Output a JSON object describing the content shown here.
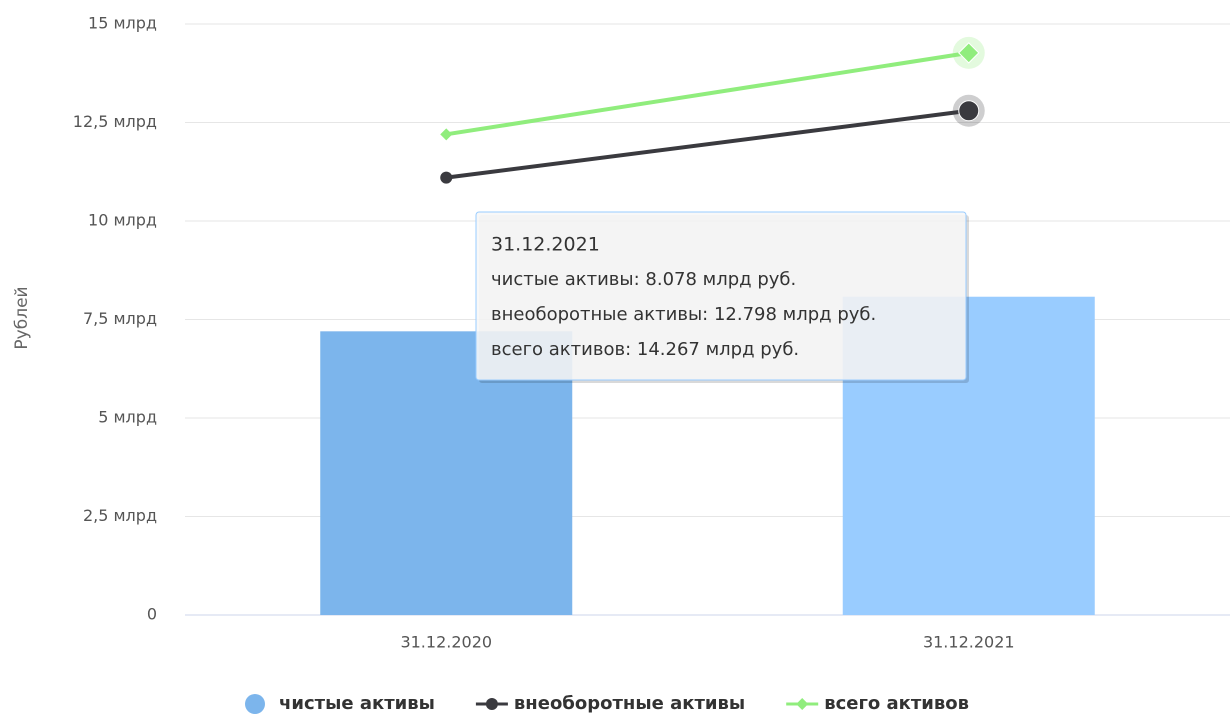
{
  "chart_data": {
    "type": "combo",
    "y_axis_title": "Рублей",
    "categories": [
      "31.12.2020",
      "31.12.2021"
    ],
    "ylim": [
      0,
      15
    ],
    "yticks": [
      0,
      {
        "value": 2.5,
        "label": "2,5 млрд"
      },
      {
        "value": 5,
        "label": "5 млрд"
      },
      {
        "value": 7.5,
        "label": "7,5 млрд"
      },
      {
        "value": 10,
        "label": "10 млрд"
      },
      {
        "value": 12.5,
        "label": "12,5 млрд"
      },
      {
        "value": 15,
        "label": "15 млрд"
      }
    ],
    "grid": true,
    "legend": "bottom",
    "series": [
      {
        "name": "чистые активы",
        "type": "bar",
        "color": "#7cb5ec",
        "colors": [
          "#7cb5ec",
          "#99ccff"
        ],
        "values": [
          7.2,
          8.078
        ]
      },
      {
        "name": "внеоборотные активы",
        "type": "line",
        "marker": "circle",
        "color": "#3a3a3f",
        "values": [
          11.1,
          12.798
        ]
      },
      {
        "name": "всего активов",
        "type": "line",
        "marker": "diamond",
        "color": "#90ed7d",
        "values": [
          12.2,
          14.267
        ]
      }
    ],
    "tooltip": {
      "title": "31.12.2021",
      "lines": [
        "чистые активы: 8.078 млрд руб.",
        "внеоборотные активы: 12.798 млрд руб.",
        "всего активов: 14.267 млрд руб."
      ]
    }
  }
}
